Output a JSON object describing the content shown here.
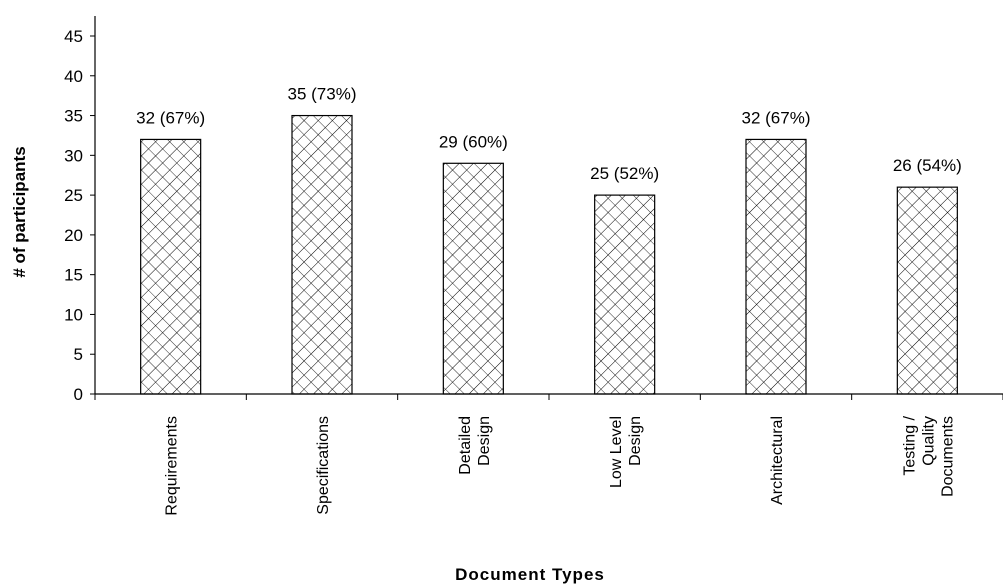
{
  "chart_data": {
    "type": "bar",
    "title": "",
    "xlabel": "Document Types",
    "ylabel": "# of participants",
    "categories": [
      [
        "Requirements"
      ],
      [
        "Specifications"
      ],
      [
        "Detailed",
        "Design"
      ],
      [
        "Low Level",
        "Design"
      ],
      [
        "Architectural"
      ],
      [
        "Testing /",
        "Quality",
        "Documents"
      ]
    ],
    "values": [
      32,
      35,
      29,
      25,
      32,
      26
    ],
    "data_labels": [
      "32 (67%)",
      "35 (73%)",
      "29 (60%)",
      "25 (52%)",
      "32 (67%)",
      "26 (54%)"
    ],
    "ylim": [
      0,
      45
    ],
    "yticks": [
      0,
      5,
      10,
      15,
      20,
      25,
      30,
      35,
      40,
      45
    ],
    "grid": false,
    "legend": "none",
    "bar_fill": "crosshatch",
    "colors": {
      "bar_stroke": "#000000",
      "hatch": "#000000",
      "background": "#ffffff"
    }
  }
}
